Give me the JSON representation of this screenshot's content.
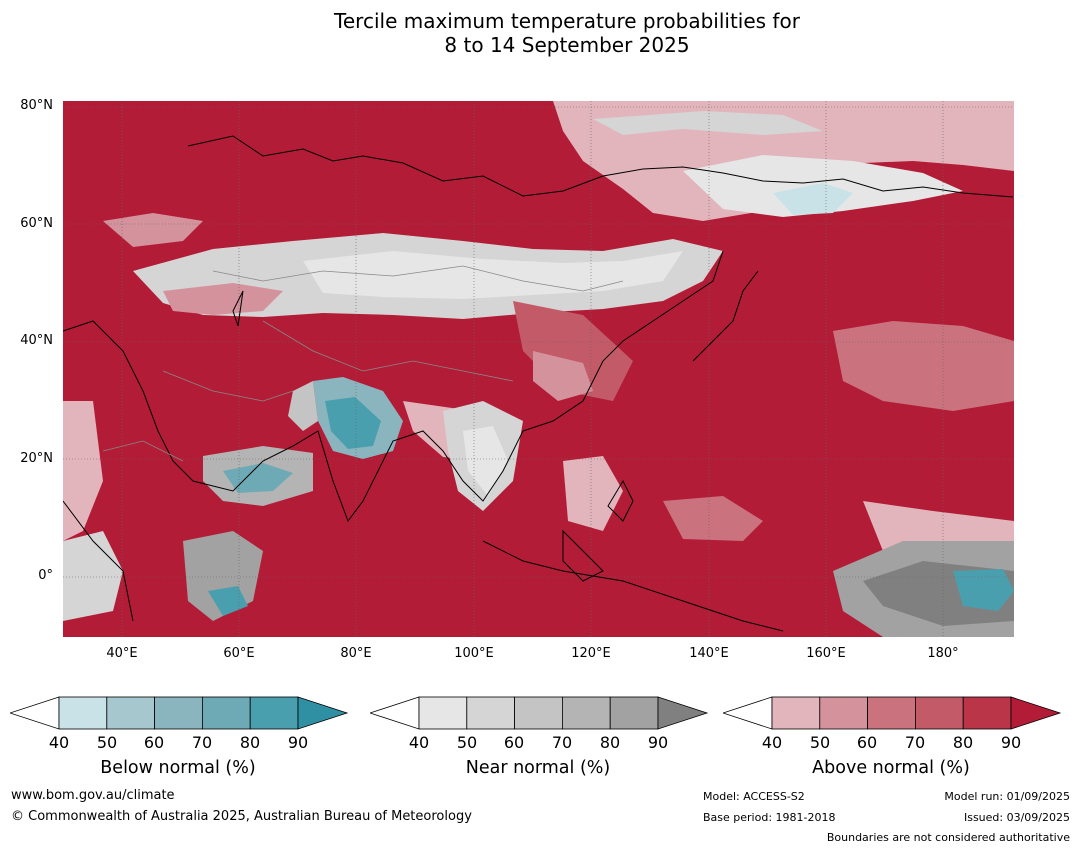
{
  "title": {
    "line1": "Tercile maximum temperature probabilities for",
    "line2": "8 to 14 September 2025"
  },
  "map": {
    "lat_labels": [
      "80°N",
      "60°N",
      "40°N",
      "20°N",
      "0°"
    ],
    "lon_labels": [
      "40°E",
      "60°E",
      "80°E",
      "100°E",
      "120°E",
      "140°E",
      "160°E",
      "180°"
    ],
    "extent": {
      "lon_min": 30,
      "lon_max": 192,
      "lat_min": -10,
      "lat_max": 81
    }
  },
  "legend": {
    "below": {
      "label": "Below normal (%)",
      "ticks": [
        "40",
        "50",
        "60",
        "70",
        "80",
        "90"
      ],
      "colors": [
        "#ffffff",
        "#c9e2e8",
        "#a6c7cd",
        "#8ab5bf",
        "#6daab5",
        "#4a9fae",
        "#2f8fa3"
      ]
    },
    "near": {
      "label": "Near normal (%)",
      "ticks": [
        "40",
        "50",
        "60",
        "70",
        "80",
        "90"
      ],
      "colors": [
        "#ffffff",
        "#e6e6e6",
        "#d5d5d5",
        "#c4c4c4",
        "#b4b4b4",
        "#a2a2a2",
        "#808080"
      ]
    },
    "above": {
      "label": "Above normal (%)",
      "ticks": [
        "40",
        "50",
        "60",
        "70",
        "80",
        "90"
      ],
      "colors": [
        "#ffffff",
        "#e1b5bb",
        "#d4939c",
        "#ca737e",
        "#c35a67",
        "#b93547",
        "#b21c37"
      ]
    }
  },
  "footer": {
    "website": "www.bom.gov.au/climate",
    "copyright": "© Commonwealth of Australia 2025, Australian Bureau of Meteorology",
    "model": "Model: ACCESS-S2",
    "base_period": "Base period: 1981-2018",
    "model_run": "Model run: 01/09/2025",
    "issued": "Issued: 03/09/2025",
    "disclaimer": "Boundaries are not considered authoritative"
  }
}
